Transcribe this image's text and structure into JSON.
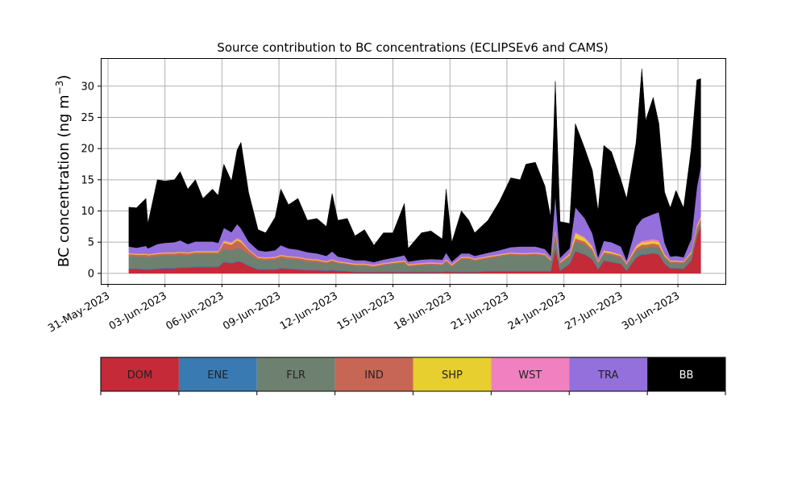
{
  "chart_data": {
    "type": "area",
    "stacked": true,
    "title": "Source contribution to BC concentrations (ECLIPSEv6 and CAMS)",
    "ylabel": "BC concentration (ng m",
    "ylabel_sup": "−3",
    "ylabel_close": ")",
    "xlabel": "",
    "ylim": [
      -1.7,
      34.5
    ],
    "xlim_days_from_2023_06_01": [
      -1.38,
      31.5
    ],
    "grid": true,
    "x_ticks": [
      {
        "day": -1,
        "label": "31-May-2023"
      },
      {
        "day": 2,
        "label": "03-Jun-2023"
      },
      {
        "day": 5,
        "label": "06-Jun-2023"
      },
      {
        "day": 8,
        "label": "09-Jun-2023"
      },
      {
        "day": 11,
        "label": "12-Jun-2023"
      },
      {
        "day": 14,
        "label": "15-Jun-2023"
      },
      {
        "day": 17,
        "label": "18-Jun-2023"
      },
      {
        "day": 20,
        "label": "21-Jun-2023"
      },
      {
        "day": 23,
        "label": "24-Jun-2023"
      },
      {
        "day": 26,
        "label": "27-Jun-2023"
      },
      {
        "day": 29,
        "label": "30-Jun-2023"
      }
    ],
    "y_ticks": [
      "0",
      "5",
      "10",
      "15",
      "20",
      "25",
      "30"
    ],
    "legend_placement": "bottom (color bar)",
    "x": [
      0.1,
      0.5,
      1.0,
      1.1,
      1.6,
      2.0,
      2.5,
      2.8,
      3.2,
      3.6,
      4.0,
      4.5,
      4.8,
      5.1,
      5.5,
      5.8,
      6.0,
      6.4,
      6.9,
      7.3,
      7.8,
      8.1,
      8.5,
      9.0,
      9.5,
      10.0,
      10.5,
      10.8,
      11.1,
      11.6,
      12.0,
      12.5,
      13.0,
      13.5,
      14.0,
      14.6,
      14.8,
      15.5,
      16.0,
      16.6,
      16.8,
      17.1,
      17.6,
      18.0,
      18.3,
      19.0,
      19.6,
      20.2,
      20.7,
      21.0,
      21.5,
      22.0,
      22.3,
      22.55,
      22.8,
      23.3,
      23.6,
      24.1,
      24.5,
      24.8,
      25.1,
      25.5,
      26.0,
      26.3,
      26.8,
      27.1,
      27.3,
      27.7,
      28.0,
      28.3,
      28.6,
      28.9,
      29.3,
      29.7,
      30.0,
      30.2
    ],
    "total": [
      10.6,
      10.5,
      12.0,
      8.0,
      15.0,
      14.8,
      15.0,
      16.3,
      13.5,
      15.0,
      12.0,
      13.5,
      12.5,
      17.5,
      14.8,
      19.8,
      21.0,
      13.0,
      7.0,
      6.5,
      9.0,
      13.5,
      11.0,
      12.0,
      8.5,
      8.8,
      7.5,
      12.8,
      8.5,
      8.8,
      6.0,
      7.0,
      4.5,
      6.5,
      6.5,
      11.2,
      4.0,
      6.5,
      6.8,
      5.5,
      13.5,
      5.0,
      10.0,
      8.5,
      6.5,
      8.5,
      11.5,
      15.3,
      15.0,
      17.5,
      17.8,
      14.0,
      9.0,
      30.8,
      8.3,
      8.0,
      24.0,
      20.0,
      16.5,
      10.0,
      20.5,
      19.5,
      15.0,
      12.0,
      21.0,
      32.8,
      24.5,
      28.2,
      24.0,
      13.0,
      10.5,
      13.3,
      10.5,
      20.0,
      31.0,
      31.2
    ],
    "series": [
      {
        "name": "DOM",
        "color": "#c42a38",
        "values": [
          0.7,
          0.7,
          0.6,
          0.6,
          0.7,
          0.8,
          0.8,
          0.9,
          0.9,
          1.0,
          1.0,
          1.0,
          1.0,
          1.8,
          1.6,
          1.9,
          1.8,
          1.2,
          0.6,
          0.6,
          0.6,
          0.8,
          0.7,
          0.6,
          0.5,
          0.5,
          0.4,
          0.5,
          0.4,
          0.3,
          0.2,
          0.2,
          0.2,
          0.2,
          0.2,
          0.2,
          0.2,
          0.2,
          0.2,
          0.2,
          0.3,
          0.2,
          0.2,
          0.2,
          0.2,
          0.3,
          0.3,
          0.3,
          0.3,
          0.3,
          0.3,
          0.3,
          0.3,
          4.0,
          0.4,
          1.5,
          3.5,
          3.0,
          2.2,
          0.6,
          2.0,
          1.8,
          1.5,
          0.4,
          2.5,
          3.0,
          3.0,
          3.2,
          3.0,
          1.5,
          0.8,
          0.8,
          0.7,
          2.0,
          6.0,
          7.5
        ]
      },
      {
        "name": "ENE",
        "color": "#3a7ab2",
        "values": [
          0.1,
          0.1,
          0.1,
          0.1,
          0.1,
          0.1,
          0.1,
          0.1,
          0.1,
          0.1,
          0.1,
          0.1,
          0.1,
          0.1,
          0.1,
          0.1,
          0.1,
          0.1,
          0.1,
          0.1,
          0.1,
          0.1,
          0.1,
          0.1,
          0.1,
          0.1,
          0.1,
          0.1,
          0.1,
          0.1,
          0.1,
          0.1,
          0.1,
          0.1,
          0.1,
          0.1,
          0.1,
          0.1,
          0.1,
          0.1,
          0.1,
          0.1,
          0.1,
          0.1,
          0.1,
          0.1,
          0.1,
          0.1,
          0.1,
          0.1,
          0.1,
          0.1,
          0.1,
          0.1,
          0.1,
          0.1,
          0.1,
          0.1,
          0.1,
          0.1,
          0.1,
          0.1,
          0.1,
          0.1,
          0.1,
          0.1,
          0.1,
          0.1,
          0.1,
          0.1,
          0.1,
          0.1,
          0.1,
          0.1,
          0.1,
          0.1
        ]
      },
      {
        "name": "FLR",
        "color": "#6e8070",
        "values": [
          2.0,
          1.9,
          2.0,
          1.9,
          2.0,
          2.0,
          2.0,
          2.0,
          1.9,
          2.0,
          2.0,
          2.0,
          2.0,
          2.0,
          2.0,
          2.1,
          2.0,
          1.8,
          1.5,
          1.4,
          1.5,
          1.6,
          1.5,
          1.5,
          1.3,
          1.2,
          1.1,
          1.3,
          1.1,
          1.0,
          0.9,
          0.9,
          0.7,
          1.0,
          1.2,
          1.4,
          0.8,
          1.0,
          1.1,
          1.0,
          1.5,
          0.8,
          2.0,
          2.0,
          1.7,
          2.0,
          2.3,
          2.6,
          2.5,
          2.5,
          2.6,
          2.4,
          1.5,
          2.0,
          1.0,
          1.0,
          1.5,
          1.5,
          1.2,
          0.9,
          1.0,
          1.0,
          0.9,
          0.8,
          1.0,
          1.0,
          1.0,
          1.0,
          1.0,
          0.9,
          0.8,
          0.8,
          0.8,
          0.8,
          0.7,
          0.6
        ]
      },
      {
        "name": "IND",
        "color": "#c86656",
        "values": [
          0.3,
          0.3,
          0.3,
          0.3,
          0.3,
          0.3,
          0.3,
          0.3,
          0.3,
          0.3,
          0.3,
          0.3,
          0.3,
          1.0,
          0.9,
          1.2,
          1.1,
          0.6,
          0.3,
          0.3,
          0.3,
          0.3,
          0.3,
          0.3,
          0.3,
          0.3,
          0.2,
          0.2,
          0.2,
          0.2,
          0.2,
          0.2,
          0.2,
          0.2,
          0.2,
          0.2,
          0.2,
          0.2,
          0.2,
          0.2,
          0.2,
          0.2,
          0.2,
          0.2,
          0.2,
          0.2,
          0.2,
          0.2,
          0.2,
          0.2,
          0.2,
          0.2,
          0.2,
          0.5,
          0.2,
          0.3,
          0.5,
          0.5,
          0.4,
          0.2,
          0.3,
          0.3,
          0.3,
          0.2,
          0.4,
          0.5,
          0.5,
          0.5,
          0.5,
          0.3,
          0.2,
          0.2,
          0.2,
          0.3,
          0.5,
          0.5
        ]
      },
      {
        "name": "SHP",
        "color": "#e6cf2e",
        "values": [
          0.1,
          0.1,
          0.1,
          0.1,
          0.1,
          0.1,
          0.1,
          0.1,
          0.1,
          0.1,
          0.1,
          0.1,
          0.1,
          0.2,
          0.2,
          0.2,
          0.2,
          0.1,
          0.1,
          0.1,
          0.1,
          0.1,
          0.1,
          0.1,
          0.1,
          0.1,
          0.1,
          0.1,
          0.1,
          0.1,
          0.1,
          0.1,
          0.1,
          0.1,
          0.1,
          0.1,
          0.1,
          0.1,
          0.1,
          0.1,
          0.1,
          0.1,
          0.1,
          0.1,
          0.1,
          0.1,
          0.1,
          0.1,
          0.1,
          0.1,
          0.1,
          0.1,
          0.1,
          0.3,
          0.1,
          0.2,
          0.8,
          0.5,
          0.3,
          0.1,
          0.2,
          0.2,
          0.1,
          0.1,
          0.3,
          0.4,
          0.4,
          0.4,
          0.4,
          0.2,
          0.1,
          0.1,
          0.1,
          0.2,
          0.3,
          0.3
        ]
      },
      {
        "name": "WST",
        "color": "#f080c0",
        "values": [
          0.1,
          0.1,
          0.1,
          0.1,
          0.1,
          0.1,
          0.1,
          0.1,
          0.1,
          0.1,
          0.1,
          0.1,
          0.1,
          0.2,
          0.2,
          0.2,
          0.2,
          0.1,
          0.1,
          0.1,
          0.1,
          0.1,
          0.1,
          0.1,
          0.1,
          0.1,
          0.1,
          0.1,
          0.1,
          0.1,
          0.1,
          0.1,
          0.1,
          0.1,
          0.1,
          0.1,
          0.1,
          0.1,
          0.1,
          0.1,
          0.1,
          0.1,
          0.1,
          0.1,
          0.1,
          0.1,
          0.1,
          0.1,
          0.1,
          0.1,
          0.1,
          0.1,
          0.1,
          0.2,
          0.1,
          0.1,
          0.2,
          0.2,
          0.2,
          0.1,
          0.1,
          0.1,
          0.1,
          0.1,
          0.2,
          0.2,
          0.3,
          0.3,
          0.3,
          0.1,
          0.1,
          0.1,
          0.1,
          0.1,
          0.2,
          0.2
        ]
      },
      {
        "name": "TRA",
        "color": "#9370db",
        "values": [
          1.0,
          0.9,
          1.2,
          0.9,
          1.4,
          1.5,
          1.6,
          1.8,
          1.3,
          1.5,
          1.5,
          1.5,
          1.3,
          2.0,
          1.6,
          2.2,
          1.8,
          1.2,
          1.0,
          0.9,
          1.0,
          1.5,
          1.2,
          1.1,
          1.0,
          0.9,
          0.8,
          1.2,
          0.7,
          0.6,
          0.5,
          0.5,
          0.4,
          0.5,
          0.6,
          0.8,
          0.4,
          0.5,
          0.5,
          0.5,
          1.0,
          0.4,
          0.5,
          0.5,
          0.4,
          0.5,
          0.6,
          0.8,
          1.0,
          1.0,
          0.9,
          0.7,
          0.5,
          5.5,
          0.6,
          0.8,
          4.0,
          3.0,
          2.0,
          0.6,
          1.5,
          1.5,
          1.3,
          0.4,
          3.0,
          3.5,
          3.7,
          4.0,
          4.5,
          1.8,
          0.6,
          0.7,
          0.6,
          2.0,
          6.0,
          8.0
        ]
      },
      {
        "name": "BB",
        "color": "#000000",
        "values_note": "remainder of total"
      }
    ]
  }
}
